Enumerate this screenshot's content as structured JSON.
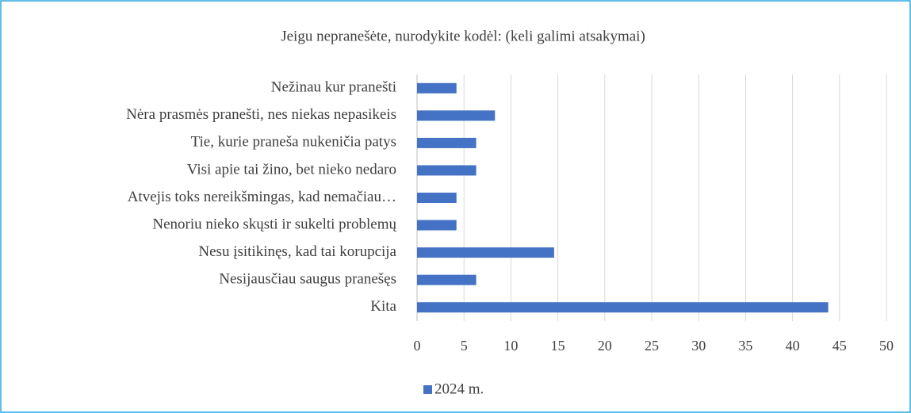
{
  "chart_data": {
    "type": "barh",
    "title": "Jeigu nepranešėte, nurodykite kodėl: (keli galimi atsakymai)",
    "categories": [
      "Nežinau kur pranešti",
      "Nėra prasmės pranešti, nes niekas nepasikeis",
      "Tie, kurie praneša nukeničia patys",
      "Visi apie tai žino, bet nieko nedaro",
      "Atvejis toks nereikšmingas, kad nemačiau…",
      "Nenoriu nieko skųsti ir sukelti problemų",
      "Nesu įsitikinęs, kad tai korupcija",
      "Nesijausčiau saugus pranešęs",
      "Kita"
    ],
    "series": [
      {
        "name": "2024 m.",
        "color": "#4472c4",
        "values": [
          4.2,
          8.3,
          6.3,
          6.3,
          4.2,
          4.2,
          14.6,
          6.3,
          43.8
        ]
      }
    ],
    "xlim": [
      0,
      50
    ],
    "xticks": [
      0,
      5,
      10,
      15,
      20,
      25,
      30,
      35,
      40,
      45,
      50
    ],
    "grid": true,
    "legend": "bottom"
  }
}
